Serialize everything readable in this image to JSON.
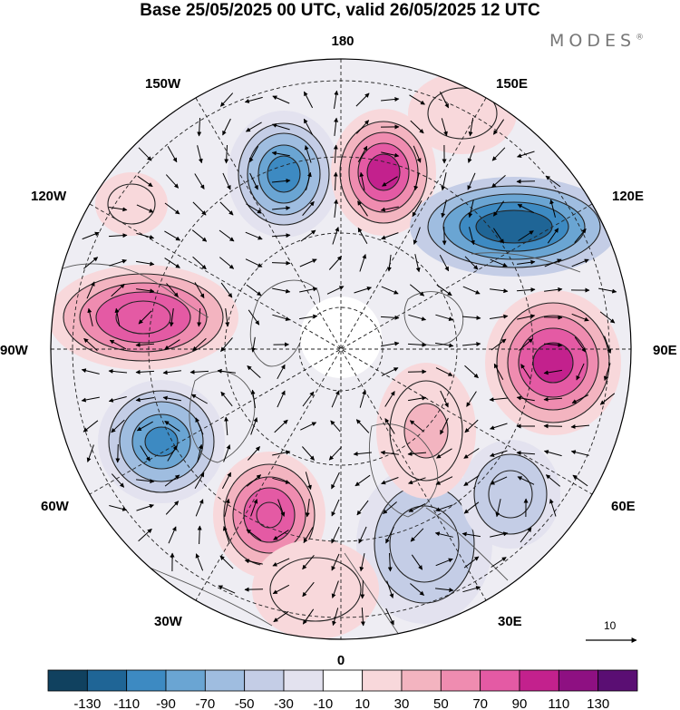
{
  "title": "Base 25/05/2025 00 UTC, valid 26/05/2025 12 UTC",
  "brand": "MODES",
  "brand_mark": "®",
  "map_labels": {
    "top": "180",
    "bottom": "0",
    "left": "90W",
    "right": "90E",
    "upper_left": "150W",
    "upper_right": "150E",
    "mid_upper_left": "120W",
    "mid_upper_right": "120E",
    "mid_lower_left": "60W",
    "mid_lower_right": "60E",
    "lower_left": "30W",
    "lower_right": "30E"
  },
  "vector_scale_label": "10",
  "colorbar": {
    "ticks": [
      "-130",
      "-110",
      "-90",
      "-70",
      "-50",
      "-30",
      "-10",
      "10",
      "30",
      "50",
      "70",
      "90",
      "110",
      "130"
    ],
    "colors": [
      "#10415f",
      "#1f6596",
      "#3d8ac2",
      "#6aa5d3",
      "#9fbde0",
      "#c4cde6",
      "#e3e2ef",
      "#ffffff",
      "#f8d8db",
      "#f3b4c0",
      "#ef8cb0",
      "#e45aa4",
      "#c3218d",
      "#8e1082",
      "#5a0e73"
    ]
  },
  "anomalies": [
    {
      "center": [
        313,
        192
      ],
      "rx": [
        62,
        50,
        40,
        28,
        18
      ],
      "ry": [
        70,
        56,
        45,
        32,
        20
      ],
      "levels": [
        6,
        5,
        4,
        3,
        2
      ]
    },
    {
      "center": [
        423,
        190
      ],
      "rx": [
        58,
        48,
        38,
        28,
        18
      ],
      "ry": [
        70,
        56,
        44,
        32,
        20
      ],
      "levels": [
        8,
        9,
        10,
        11,
        12
      ]
    },
    {
      "center": [
        567,
        250
      ],
      "rx": [
        115,
        95,
        78,
        60,
        42
      ],
      "ry": [
        55,
        45,
        36,
        27,
        18
      ],
      "levels": [
        5,
        4,
        3,
        2,
        1
      ]
    },
    {
      "center": [
        158,
        350
      ],
      "rx": [
        105,
        88,
        70,
        52,
        30
      ],
      "ry": [
        58,
        48,
        38,
        28,
        18
      ],
      "levels": [
        8,
        9,
        10,
        11,
        11
      ]
    },
    {
      "center": [
        610,
        400
      ],
      "rx": [
        75,
        62,
        50,
        38,
        22
      ],
      "ry": [
        80,
        66,
        52,
        38,
        22
      ],
      "levels": [
        8,
        9,
        10,
        11,
        12
      ]
    },
    {
      "center": [
        178,
        487
      ],
      "rx": [
        70,
        58,
        46,
        32,
        18
      ],
      "ry": [
        68,
        56,
        44,
        30,
        16
      ],
      "levels": [
        6,
        5,
        4,
        3,
        2
      ]
    },
    {
      "center": [
        297,
        568
      ],
      "rx": [
        62,
        50,
        40,
        28,
        14
      ],
      "ry": [
        70,
        56,
        42,
        30,
        14
      ],
      "levels": [
        8,
        9,
        10,
        11,
        11
      ]
    },
    {
      "center": [
        468,
        600
      ],
      "rx": [
        75,
        55,
        38
      ],
      "ry": [
        88,
        65,
        42
      ],
      "levels": [
        6,
        5,
        5
      ]
    },
    {
      "center": [
        563,
        545
      ],
      "rx": [
        55,
        40,
        24
      ],
      "ry": [
        60,
        44,
        26
      ],
      "levels": [
        6,
        5,
        5
      ]
    },
    {
      "center": [
        470,
        475
      ],
      "rx": [
        55,
        40,
        24
      ],
      "ry": [
        75,
        55,
        30
      ],
      "levels": [
        8,
        8,
        9
      ]
    },
    {
      "center": [
        348,
        650
      ],
      "rx": [
        70,
        50
      ],
      "ry": [
        55,
        35
      ],
      "levels": [
        8,
        8
      ]
    },
    {
      "center": [
        145,
        225
      ],
      "rx": [
        40,
        26
      ],
      "ry": [
        35,
        22
      ],
      "levels": [
        8,
        8
      ]
    },
    {
      "center": [
        510,
        125
      ],
      "rx": [
        60,
        38
      ],
      "ry": [
        45,
        28
      ],
      "levels": [
        8,
        8
      ]
    }
  ]
}
